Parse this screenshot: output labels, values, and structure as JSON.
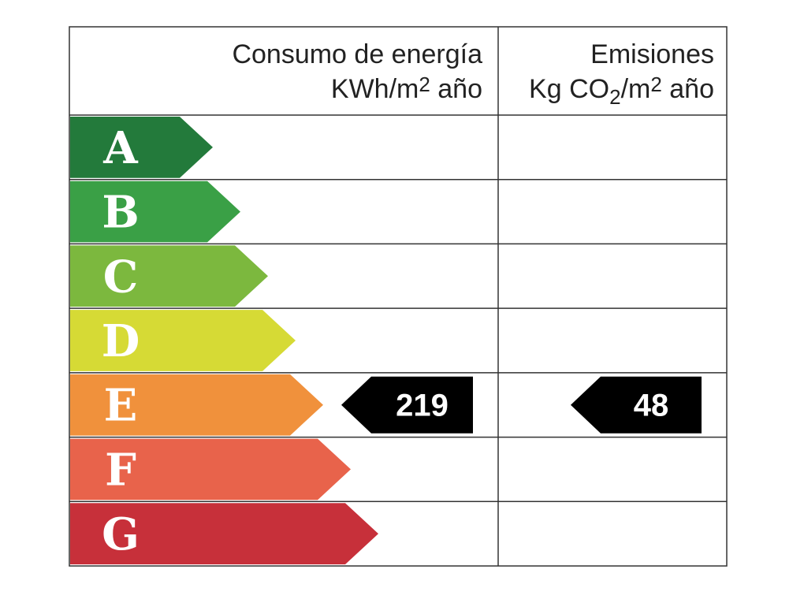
{
  "header": {
    "energy": {
      "title": "Consumo de energía",
      "unit": [
        "KWh/m",
        "2",
        " año"
      ]
    },
    "emissions": {
      "title": "Emisiones",
      "unit": [
        "Kg CO",
        "2",
        "/m",
        "2",
        " año"
      ]
    }
  },
  "rows": [
    {
      "letter": "A",
      "color": "#237a3b"
    },
    {
      "letter": "B",
      "color": "#3aa046"
    },
    {
      "letter": "C",
      "color": "#7cb83e"
    },
    {
      "letter": "D",
      "color": "#d6da35"
    },
    {
      "letter": "E",
      "color": "#f0913c",
      "energy": 219,
      "emissions": 48
    },
    {
      "letter": "F",
      "color": "#e8634b"
    },
    {
      "letter": "G",
      "color": "#c7303a"
    }
  ]
}
